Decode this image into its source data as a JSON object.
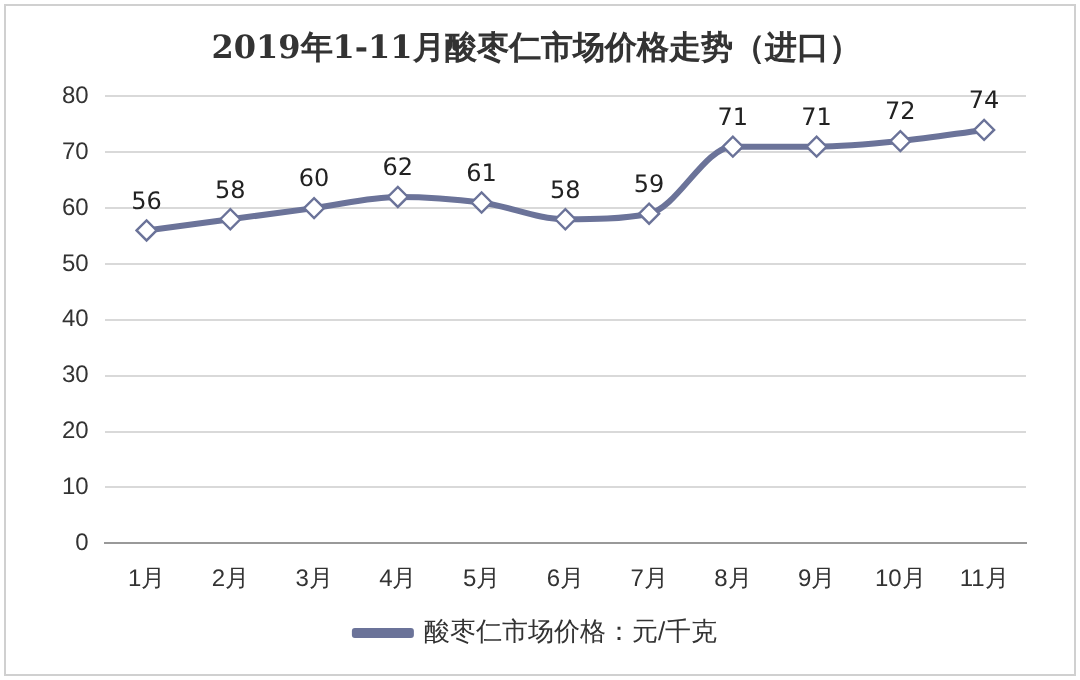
{
  "chart_data": {
    "type": "line",
    "title": "2019年1-11月酸枣仁市场价格走势（进口）",
    "categories": [
      "1月",
      "2月",
      "3月",
      "4月",
      "5月",
      "6月",
      "7月",
      "8月",
      "9月",
      "10月",
      "11月"
    ],
    "series": [
      {
        "name": "酸枣仁市场价格：元/千克",
        "color": "#6b7399",
        "values": [
          56,
          58,
          60,
          62,
          61,
          58,
          59,
          71,
          71,
          72,
          74
        ]
      }
    ],
    "ylim": [
      0,
      80
    ],
    "yticks": [
      0,
      10,
      20,
      30,
      40,
      50,
      60,
      70,
      80
    ],
    "grid": "y",
    "legend": "bottom",
    "marker": "diamond",
    "data_labels": true
  }
}
